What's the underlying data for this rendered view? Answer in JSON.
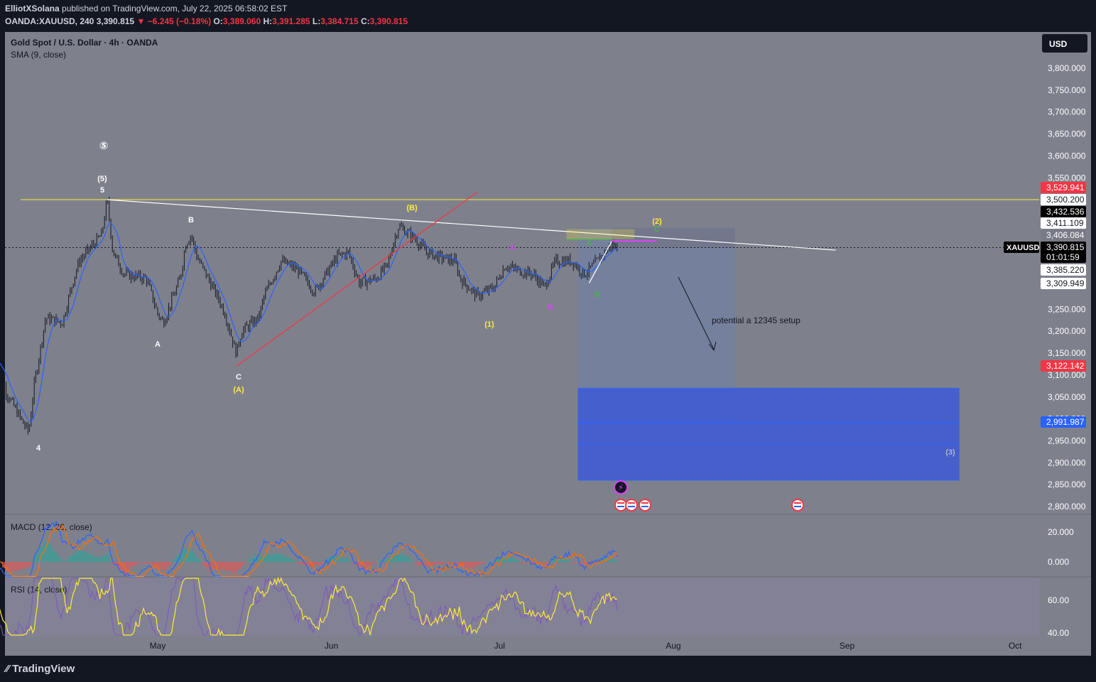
{
  "header": {
    "author": "ElliotXSolana",
    "published": "published on TradingView.com, July 22, 2025 06:58:02 EST",
    "symbol_line": "OANDA:XAUUSD, 240",
    "last": "3,390.815",
    "change": "−6.245 (−0.18%)",
    "o_label": "O:",
    "o": "3,389.060",
    "h_label": "H:",
    "h": "3,391.285",
    "l_label": "L:",
    "l": "3,384.715",
    "c_label": "C:",
    "c": "3,390.815"
  },
  "legend": {
    "title": "Gold Spot / U.S. Dollar · 4h · OANDA",
    "sma": "SMA (9, close)",
    "macd": "MACD (12, 26, close)",
    "rsi": "RSI (14, close)"
  },
  "currency_button": "USD",
  "footer": {
    "brand": "TradingView"
  },
  "chart_data": [
    {
      "type": "candlestick",
      "title": "Gold Spot / U.S. Dollar · 4h · OANDA",
      "x_ticks": [
        "May",
        "Jun",
        "Jul",
        "Aug",
        "Sep",
        "Oct"
      ],
      "y_ticks": [
        "3,800.000",
        "3,750.000",
        "3,700.000",
        "3,650.000",
        "3,600.000",
        "3,550.000",
        "3,250.000",
        "3,200.000",
        "3,150.000",
        "3,100.000",
        "3,050.000",
        "3,000.000",
        "2,950.000",
        "2,900.000",
        "2,850.000",
        "2,800.000"
      ],
      "ylim": [
        2780,
        3845
      ],
      "price_path": [
        [
          "Apr 2",
          3150
        ],
        [
          "Apr 4",
          3060
        ],
        [
          "Apr 7",
          2990
        ],
        [
          "Apr 8",
          2970
        ],
        [
          "Apr 9",
          3080
        ],
        [
          "Apr 11",
          3230
        ],
        [
          "Apr 14",
          3220
        ],
        [
          "Apr 16",
          3320
        ],
        [
          "Apr 17",
          3360
        ],
        [
          "Apr 21",
          3420
        ],
        [
          "Apr 22",
          3500
        ],
        [
          "Apr 23",
          3380
        ],
        [
          "Apr 25",
          3330
        ],
        [
          "Apr 29",
          3320
        ],
        [
          "May 1",
          3240
        ],
        [
          "May 2",
          3220
        ],
        [
          "May 5",
          3320
        ],
        [
          "May 6",
          3400
        ],
        [
          "May 7",
          3420
        ],
        [
          "May 8",
          3370
        ],
        [
          "May 12",
          3270
        ],
        [
          "May 13",
          3240
        ],
        [
          "May 15",
          3150
        ],
        [
          "May 16",
          3200
        ],
        [
          "May 19",
          3230
        ],
        [
          "May 20",
          3280
        ],
        [
          "May 23",
          3360
        ],
        [
          "May 26",
          3340
        ],
        [
          "May 29",
          3290
        ],
        [
          "Jun 2",
          3370
        ],
        [
          "Jun 4",
          3380
        ],
        [
          "Jun 6",
          3310
        ],
        [
          "Jun 9",
          3320
        ],
        [
          "Jun 11",
          3350
        ],
        [
          "Jun 12",
          3400
        ],
        [
          "Jun 13",
          3440
        ],
        [
          "Jun 16",
          3410
        ],
        [
          "Jun 18",
          3380
        ],
        [
          "Jun 20",
          3370
        ],
        [
          "Jun 23",
          3360
        ],
        [
          "Jun 24",
          3320
        ],
        [
          "Jun 27",
          3280
        ],
        [
          "Jun 30",
          3300
        ],
        [
          "Jul 2",
          3350
        ],
        [
          "Jul 4",
          3340
        ],
        [
          "Jul 7",
          3330
        ],
        [
          "Jul 9",
          3300
        ],
        [
          "Jul 11",
          3360
        ],
        [
          "Jul 14",
          3360
        ],
        [
          "Jul 16",
          3330
        ],
        [
          "Jul 17",
          3340
        ],
        [
          "Jul 21",
          3396
        ],
        [
          "Jul 22",
          3390.815
        ]
      ],
      "price_labels": [
        {
          "text": "3,529.941",
          "color": "#f23645"
        },
        {
          "text": "3,500.200",
          "color": "#ffffff"
        },
        {
          "text": "3,432.536",
          "color": "#000000"
        },
        {
          "text": "3,411.109",
          "color": "#ffffff"
        },
        {
          "text": "3,406.084",
          "color": "#787b86"
        },
        {
          "text": "3,390.815",
          "color": "#000000",
          "extra": "01:01:59",
          "symbol": "XAUUSD"
        },
        {
          "text": "3,385.220",
          "color": "#ffffff"
        },
        {
          "text": "3,309.949",
          "color": "#ffffff"
        },
        {
          "text": "3,122.142",
          "color": "#f23645"
        },
        {
          "text": "2,991.987",
          "color": "#2962ff"
        }
      ],
      "horizontal_level": 3500.2,
      "wave_labels": [
        {
          "text": "⑤",
          "color": "#ffffff"
        },
        {
          "text": "(5)",
          "color": "#ffffff"
        },
        {
          "text": "5",
          "color": "#ffffff"
        },
        {
          "text": "4",
          "color": "#ffffff"
        },
        {
          "text": "A",
          "color": "#ffffff"
        },
        {
          "text": "B",
          "color": "#ffffff"
        },
        {
          "text": "C",
          "color": "#ffffff"
        },
        {
          "text": "(A)",
          "color": "#ffeb3b"
        },
        {
          "text": "(B)",
          "color": "#ffeb3b"
        },
        {
          "text": "(1)",
          "color": "#ffeb3b"
        },
        {
          "text": "(2)",
          "color": "#ffeb3b"
        },
        {
          "text": "A",
          "color": "#e040fb"
        },
        {
          "text": "B",
          "color": "#e040fb"
        },
        {
          "text": "A",
          "color": "#4caf50"
        },
        {
          "text": "B",
          "color": "#4caf50"
        },
        {
          "text": "C",
          "color": "#4caf50"
        },
        {
          "text": "(3)",
          "color": "#b2b5be"
        }
      ],
      "annotation": "potential a 12345 setup",
      "target_zone": [
        2860,
        3070
      ]
    },
    {
      "type": "line",
      "title": "MACD (12, 26, close)",
      "y_ticks": [
        "20.000",
        "0.000"
      ]
    },
    {
      "type": "line",
      "title": "RSI (14, close)",
      "y_ticks": [
        "60.00",
        "40.00"
      ]
    }
  ]
}
